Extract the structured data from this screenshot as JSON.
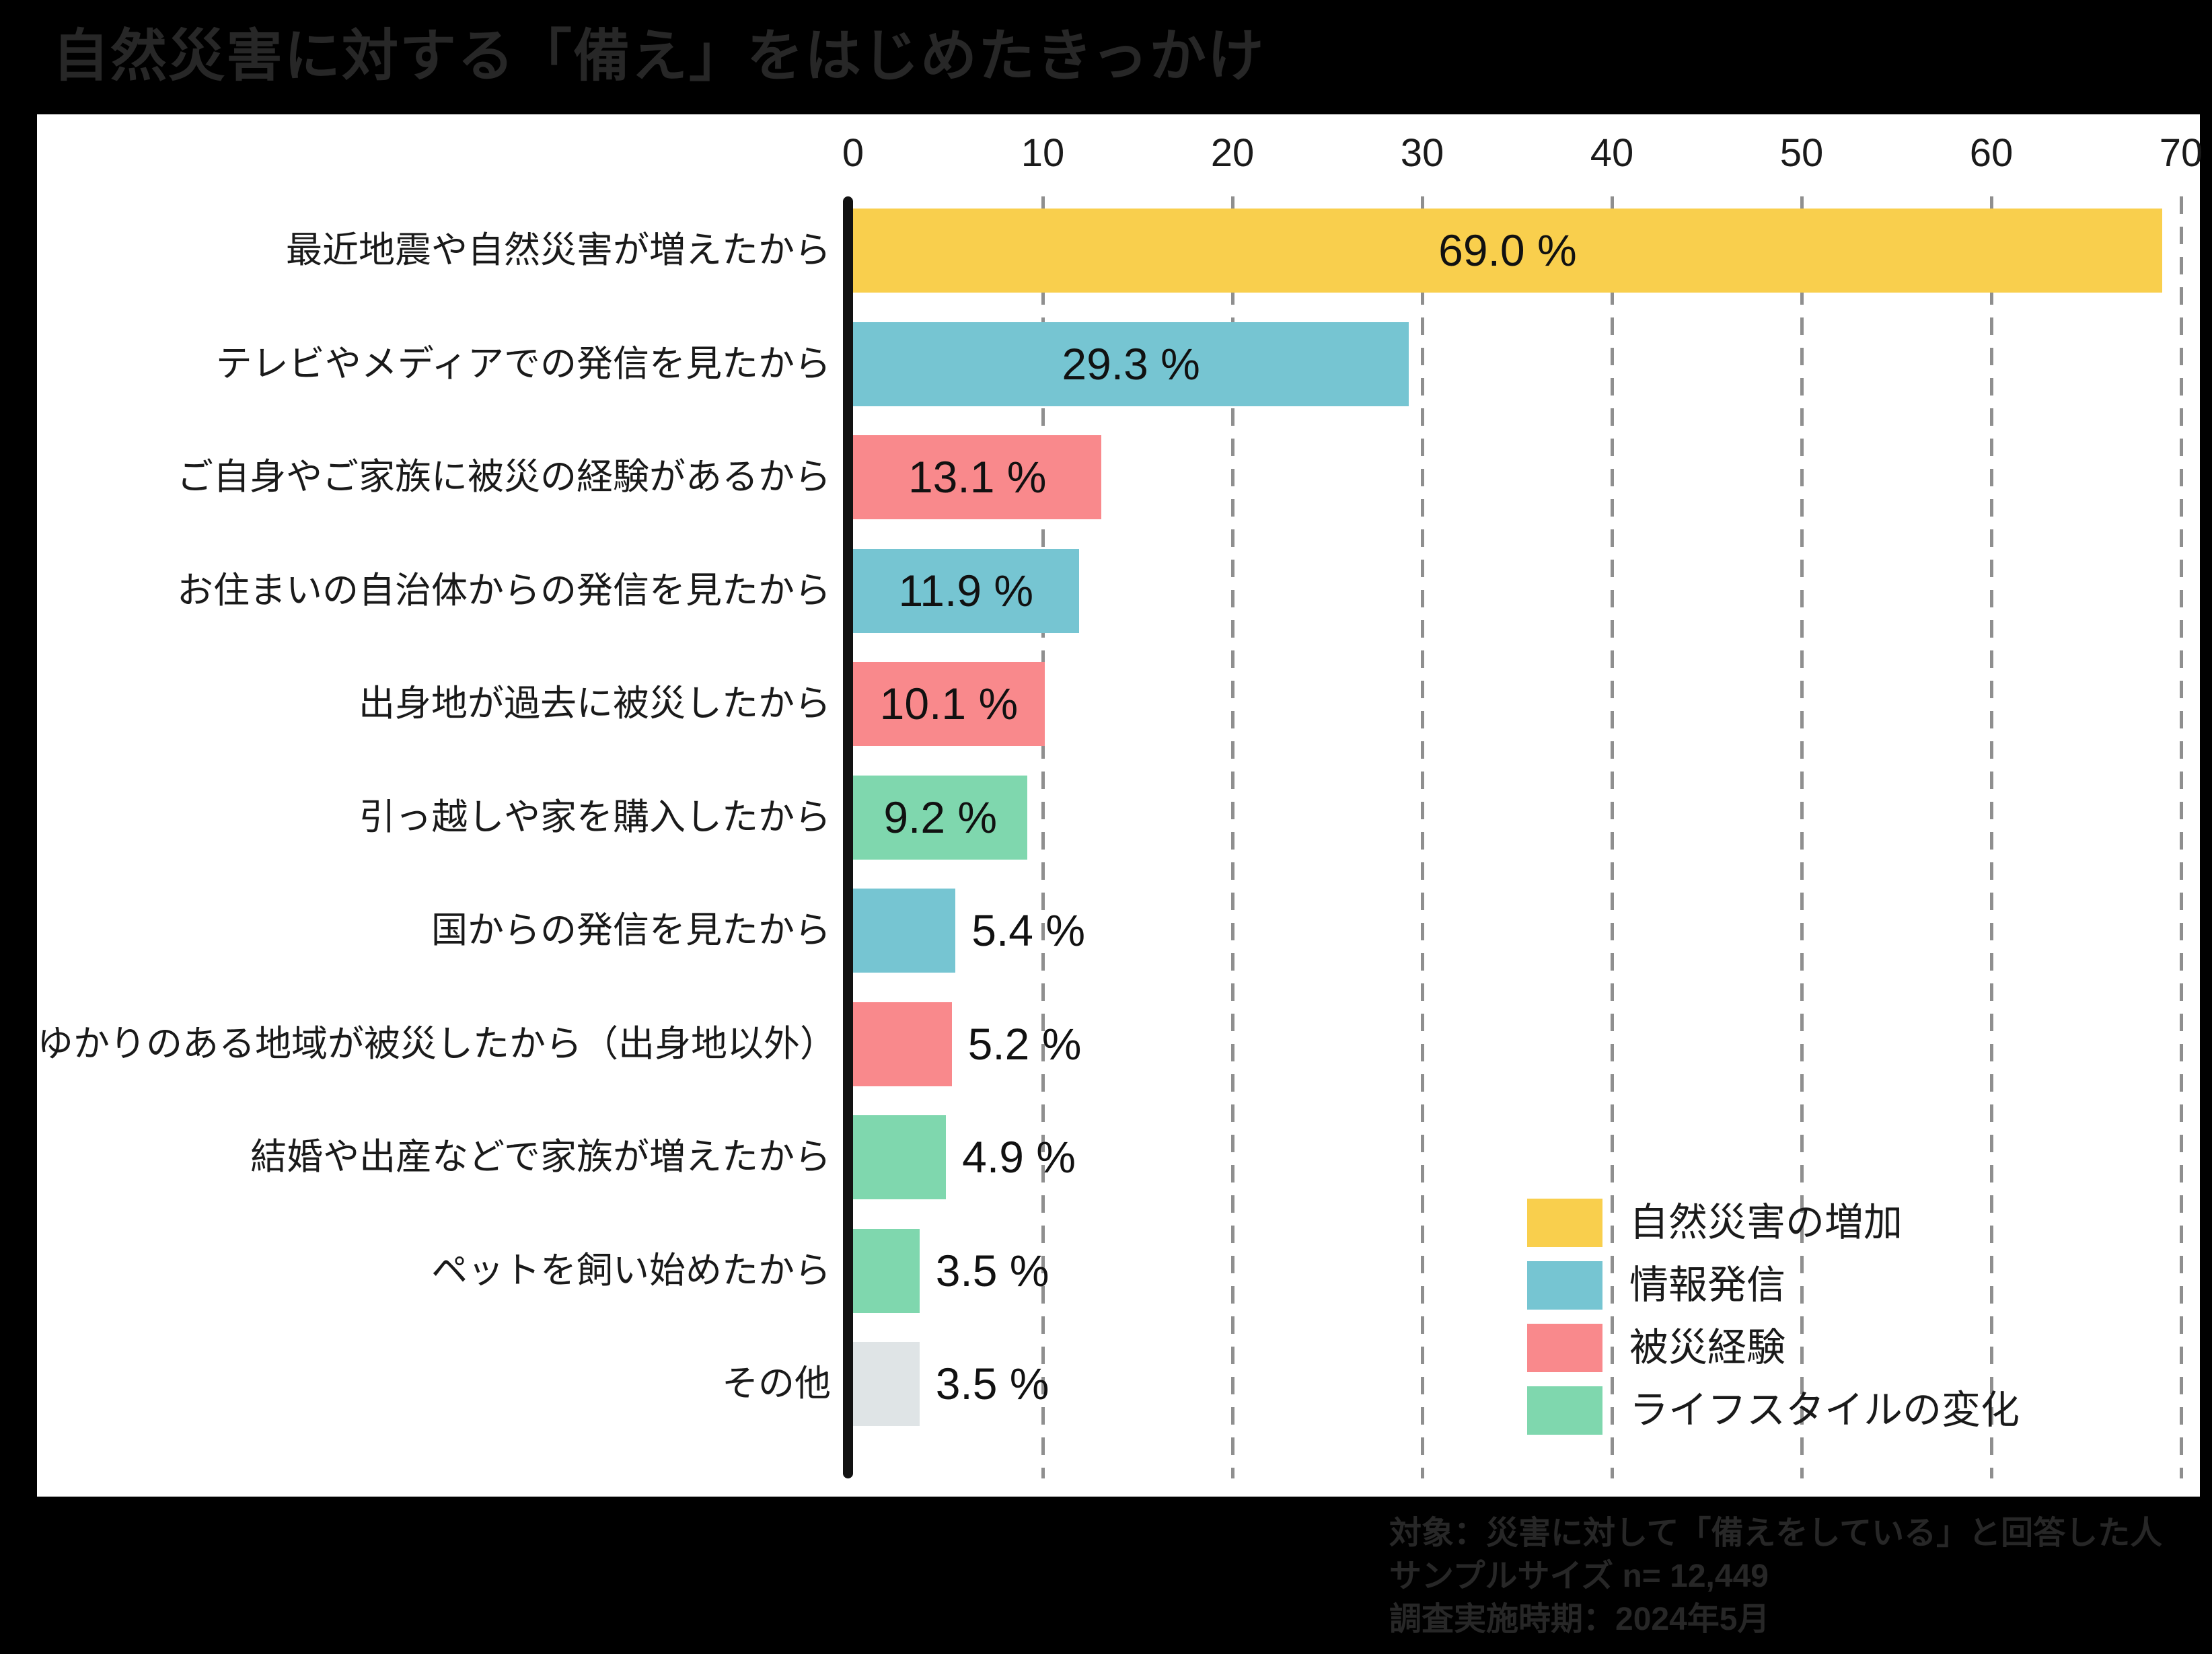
{
  "title": "自然災害に対する「備え」をはじめたきっかけ",
  "footer": {
    "line1": "対象：災害に対して「備えをしている」と回答した人",
    "line2": "サンプルサイズ n= 12,449",
    "line3": "調査実施時期：2024年5月"
  },
  "colors": {
    "disaster_increase": "#F9CF4D",
    "information": "#76C5D2",
    "experience": "#F9898C",
    "lifestyle": "#7FD7AE",
    "other": "#DFE4E6",
    "grid": "#8f8f8f",
    "axis": "#121212",
    "panel": "#ffffff",
    "background": "#000000"
  },
  "chart_data": {
    "type": "bar",
    "orientation": "horizontal",
    "title": "自然災害に対する「備え」をはじめたきっかけ",
    "unit": "%",
    "xlim": [
      0,
      70
    ],
    "x_ticks": [
      0,
      10,
      20,
      30,
      40,
      50,
      60,
      70
    ],
    "grid": true,
    "legend_position": "bottom-right",
    "bars": [
      {
        "category": "最近地震や自然災害が増えたから",
        "value": 69.0,
        "label": "69.0 %",
        "color_key": "disaster_increase",
        "label_inside": true
      },
      {
        "category": "テレビやメディアでの発信を見たから",
        "value": 29.3,
        "label": "29.3 %",
        "color_key": "information",
        "label_inside": true
      },
      {
        "category": "ご自身やご家族に被災の経験があるから",
        "value": 13.1,
        "label": "13.1 %",
        "color_key": "experience",
        "label_inside": true
      },
      {
        "category": "お住まいの自治体からの発信を見たから",
        "value": 11.9,
        "label": "11.9 %",
        "color_key": "information",
        "label_inside": true
      },
      {
        "category": "出身地が過去に被災したから",
        "value": 10.1,
        "label": "10.1 %",
        "color_key": "experience",
        "label_inside": true
      },
      {
        "category": "引っ越しや家を購入したから",
        "value": 9.2,
        "label": "9.2 %",
        "color_key": "lifestyle",
        "label_inside": true
      },
      {
        "category": "国からの発信を見たから",
        "value": 5.4,
        "label": "5.4 %",
        "color_key": "information",
        "label_inside": false
      },
      {
        "category": "ゆかりのある地域が被災したから（出身地以外）",
        "value": 5.2,
        "label": "5.2 %",
        "color_key": "experience",
        "label_inside": false
      },
      {
        "category": "結婚や出産などで家族が増えたから",
        "value": 4.9,
        "label": "4.9 %",
        "color_key": "lifestyle",
        "label_inside": false
      },
      {
        "category": "ペットを飼い始めたから",
        "value": 3.5,
        "label": "3.5 %",
        "color_key": "lifestyle",
        "label_inside": false
      },
      {
        "category": "その他",
        "value": 3.5,
        "label": "3.5 %",
        "color_key": "other",
        "label_inside": false
      }
    ],
    "legend": [
      {
        "label": "自然災害の増加",
        "color_key": "disaster_increase"
      },
      {
        "label": "情報発信",
        "color_key": "information"
      },
      {
        "label": "被災経験",
        "color_key": "experience"
      },
      {
        "label": "ライフスタイルの変化",
        "color_key": "lifestyle"
      }
    ]
  }
}
